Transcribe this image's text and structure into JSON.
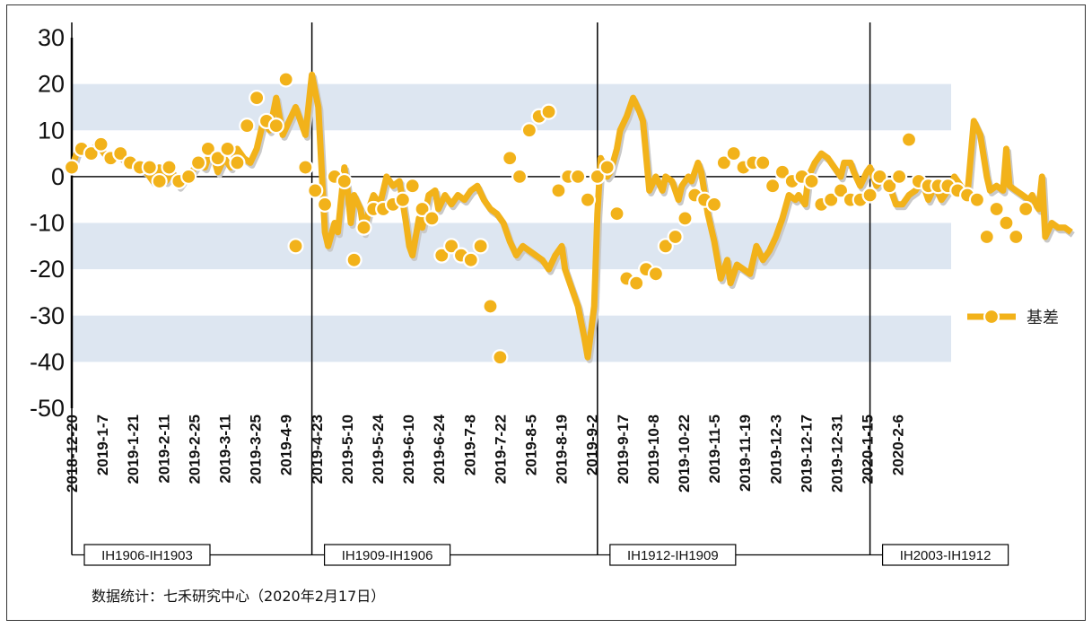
{
  "chart_data": {
    "type": "line",
    "ylim": [
      -50,
      30
    ],
    "yticks": [
      30,
      20,
      10,
      0,
      -10,
      -20,
      -30,
      -40,
      -50
    ],
    "x_tick_labels": [
      "2018-12-20",
      "2019-1-7",
      "2019-1-21",
      "2019-2-11",
      "2019-2-25",
      "2019-3-11",
      "2019-3-25",
      "2019-4-9",
      "2019-4-23",
      "2019-5-10",
      "2019-5-24",
      "2019-6-10",
      "2019-6-24",
      "2019-7-8",
      "2019-7-22",
      "2019-8-5",
      "2019-8-19",
      "2019-9-2",
      "2019-9-17",
      "2019-10-8",
      "2019-10-22",
      "2019-11-5",
      "2019-11-19",
      "2019-12-3",
      "2019-12-17",
      "2019-12-31",
      "2020-1-15",
      "2020-2-6"
    ],
    "n_points": 272,
    "series": [
      {
        "name": "基差",
        "color": "#f2b21a",
        "points": [
          [
            0,
            2
          ],
          [
            2,
            6
          ],
          [
            5,
            5
          ],
          [
            8,
            7
          ],
          [
            11,
            4
          ],
          [
            14,
            5
          ],
          [
            17,
            3
          ],
          [
            20,
            2
          ],
          [
            23,
            1
          ],
          [
            25,
            -1
          ],
          [
            27,
            2
          ],
          [
            29,
            -1
          ],
          [
            31,
            1
          ],
          [
            33,
            -2
          ],
          [
            35,
            0
          ],
          [
            37,
            1
          ],
          [
            39,
            3
          ],
          [
            41,
            2
          ],
          [
            43,
            6
          ],
          [
            45,
            1
          ],
          [
            47,
            4
          ],
          [
            49,
            2
          ],
          [
            51,
            6
          ],
          [
            53,
            4
          ],
          [
            55,
            3
          ],
          [
            57,
            6
          ],
          [
            59,
            12
          ],
          [
            61,
            10
          ],
          [
            63,
            17
          ],
          [
            65,
            9
          ],
          [
            67,
            12
          ],
          [
            69,
            15
          ],
          [
            71,
            11
          ],
          [
            72,
            9
          ],
          [
            74,
            22
          ],
          [
            76,
            15
          ],
          [
            78,
            -12
          ],
          [
            79,
            -15
          ],
          [
            81,
            -10
          ],
          [
            82,
            -12
          ],
          [
            84,
            2
          ],
          [
            85,
            -3
          ],
          [
            86,
            -10
          ],
          [
            87,
            -4
          ],
          [
            89,
            -7
          ],
          [
            90,
            -12
          ],
          [
            92,
            -6
          ],
          [
            93,
            -4
          ],
          [
            95,
            -6
          ],
          [
            97,
            0
          ],
          [
            99,
            -2
          ],
          [
            101,
            -1
          ],
          [
            103,
            -10
          ],
          [
            104,
            -15
          ],
          [
            105,
            -17
          ],
          [
            107,
            -9
          ],
          [
            108,
            -11
          ],
          [
            110,
            -4
          ],
          [
            112,
            -3
          ],
          [
            113,
            -7
          ],
          [
            115,
            -4
          ],
          [
            117,
            -6
          ],
          [
            119,
            -4
          ],
          [
            121,
            -5
          ],
          [
            123,
            -3
          ],
          [
            125,
            -2
          ],
          [
            127,
            -5
          ],
          [
            129,
            -7
          ],
          [
            131,
            -8
          ],
          [
            133,
            -10
          ],
          [
            135,
            -14
          ],
          [
            137,
            -17
          ],
          [
            139,
            -15
          ],
          [
            141,
            -16
          ],
          [
            143,
            -17
          ],
          [
            145,
            -18
          ],
          [
            147,
            -20
          ],
          [
            149,
            -17
          ],
          [
            151,
            -15
          ],
          [
            152,
            -20
          ],
          [
            154,
            -24
          ],
          [
            156,
            -28
          ],
          [
            158,
            -35
          ],
          [
            159,
            -39
          ],
          [
            161,
            -28
          ],
          [
            162,
            -8
          ],
          [
            163,
            4
          ],
          [
            165,
            0
          ],
          [
            166,
            1
          ],
          [
            168,
            6
          ],
          [
            169,
            10
          ],
          [
            171,
            13
          ],
          [
            173,
            17
          ],
          [
            175,
            14
          ],
          [
            176,
            12
          ],
          [
            178,
            -3
          ],
          [
            180,
            0
          ],
          [
            182,
            -3
          ],
          [
            183,
            0
          ],
          [
            185,
            -1
          ],
          [
            187,
            -5
          ],
          [
            188,
            -2
          ],
          [
            190,
            0
          ],
          [
            191,
            -1
          ],
          [
            193,
            3
          ],
          [
            194,
            1
          ],
          [
            196,
            -8
          ],
          [
            198,
            -14
          ],
          [
            200,
            -22
          ],
          [
            202,
            -18
          ],
          [
            203,
            -23
          ],
          [
            205,
            -19
          ],
          [
            207,
            -20
          ],
          [
            209,
            -21
          ],
          [
            211,
            -15
          ],
          [
            213,
            -18
          ],
          [
            215,
            -16
          ],
          [
            217,
            -13
          ],
          [
            219,
            -9
          ],
          [
            221,
            -4
          ],
          [
            223,
            -5
          ],
          [
            224,
            -4
          ],
          [
            226,
            -6
          ],
          [
            227,
            0
          ],
          [
            229,
            3
          ],
          [
            231,
            5
          ],
          [
            233,
            4
          ],
          [
            235,
            2
          ],
          [
            237,
            0
          ],
          [
            238,
            3
          ],
          [
            240,
            3
          ],
          [
            241,
            1
          ],
          [
            243,
            -2
          ],
          [
            245,
            1
          ],
          [
            246,
            2
          ],
          [
            248,
            -2
          ],
          [
            250,
            0
          ],
          [
            252,
            -2
          ],
          [
            254,
            -6
          ],
          [
            256,
            -6
          ],
          [
            258,
            -4
          ],
          [
            260,
            -3
          ],
          [
            262,
            -1
          ],
          [
            264,
            -5
          ],
          [
            266,
            -2
          ],
          [
            268,
            -5
          ],
          [
            270,
            -3
          ],
          [
            272,
            0
          ],
          [
            274,
            -2
          ],
          [
            276,
            -4
          ],
          [
            278,
            12
          ],
          [
            280,
            9
          ],
          [
            282,
            0
          ],
          [
            283,
            -3
          ],
          [
            285,
            -2
          ],
          [
            287,
            -3
          ],
          [
            288,
            6
          ],
          [
            289,
            -2
          ],
          [
            291,
            -3
          ],
          [
            293,
            -4
          ],
          [
            295,
            -5
          ],
          [
            296,
            -4
          ],
          [
            297,
            -6
          ],
          [
            298,
            -7
          ],
          [
            299,
            0
          ],
          [
            300,
            -13
          ],
          [
            302,
            -10
          ],
          [
            304,
            -11
          ],
          [
            306,
            -11
          ],
          [
            308,
            -12
          ]
        ],
        "markers": [
          [
            0,
            2
          ],
          [
            3,
            6
          ],
          [
            6,
            5
          ],
          [
            9,
            7
          ],
          [
            12,
            4
          ],
          [
            15,
            5
          ],
          [
            18,
            3
          ],
          [
            21,
            2
          ],
          [
            24,
            2
          ],
          [
            27,
            -1
          ],
          [
            30,
            2
          ],
          [
            33,
            -1
          ],
          [
            36,
            0
          ],
          [
            39,
            3
          ],
          [
            42,
            6
          ],
          [
            45,
            4
          ],
          [
            48,
            6
          ],
          [
            51,
            3
          ],
          [
            54,
            11
          ],
          [
            57,
            17
          ],
          [
            60,
            12
          ],
          [
            63,
            11
          ],
          [
            66,
            21
          ],
          [
            69,
            -15
          ],
          [
            72,
            2
          ],
          [
            75,
            -3
          ],
          [
            78,
            -6
          ],
          [
            81,
            0
          ],
          [
            84,
            -1
          ],
          [
            87,
            -18
          ],
          [
            90,
            -11
          ],
          [
            93,
            -7
          ],
          [
            96,
            -7
          ],
          [
            99,
            -6
          ],
          [
            102,
            -5
          ],
          [
            105,
            -2
          ],
          [
            108,
            -7
          ],
          [
            111,
            -9
          ],
          [
            114,
            -17
          ],
          [
            117,
            -15
          ],
          [
            120,
            -17
          ],
          [
            123,
            -18
          ],
          [
            126,
            -15
          ],
          [
            129,
            -28
          ],
          [
            132,
            -39
          ],
          [
            135,
            4
          ],
          [
            138,
            0
          ],
          [
            141,
            10
          ],
          [
            144,
            13
          ],
          [
            147,
            14
          ],
          [
            150,
            -3
          ],
          [
            153,
            0
          ],
          [
            156,
            0
          ],
          [
            159,
            -5
          ],
          [
            162,
            0
          ],
          [
            165,
            2
          ],
          [
            168,
            -8
          ],
          [
            171,
            -22
          ],
          [
            174,
            -23
          ],
          [
            177,
            -20
          ],
          [
            180,
            -21
          ],
          [
            183,
            -15
          ],
          [
            186,
            -13
          ],
          [
            189,
            -9
          ],
          [
            192,
            -4
          ],
          [
            195,
            -5
          ],
          [
            198,
            -6
          ],
          [
            201,
            3
          ],
          [
            204,
            5
          ],
          [
            207,
            2
          ],
          [
            210,
            3
          ],
          [
            213,
            3
          ],
          [
            216,
            -2
          ],
          [
            219,
            1
          ],
          [
            222,
            -1
          ],
          [
            225,
            0
          ],
          [
            228,
            -1
          ],
          [
            231,
            -6
          ],
          [
            234,
            -5
          ],
          [
            237,
            -3
          ],
          [
            240,
            -5
          ],
          [
            243,
            -5
          ],
          [
            246,
            -4
          ],
          [
            249,
            0
          ],
          [
            252,
            -2
          ],
          [
            255,
            0
          ],
          [
            258,
            8
          ],
          [
            261,
            -1
          ],
          [
            264,
            -2
          ],
          [
            267,
            -2
          ],
          [
            270,
            -2
          ],
          [
            273,
            -3
          ],
          [
            276,
            -4
          ],
          [
            279,
            -5
          ],
          [
            282,
            -13
          ],
          [
            285,
            -7
          ],
          [
            288,
            -10
          ],
          [
            291,
            -13
          ],
          [
            294,
            -7
          ]
        ]
      }
    ],
    "rollovers": [
      {
        "index": 0,
        "label": "IH1906-IH1903"
      },
      {
        "index": 74,
        "label": "IH1909-IH1906"
      },
      {
        "index": 162,
        "label": "IH1912-IH1909"
      },
      {
        "index": 246,
        "label": "IH2003-IH1912"
      }
    ],
    "legend": {
      "label": "基差",
      "position": "right"
    },
    "footnote": "数据统计：七禾研究中心（2020年2月17日）"
  }
}
